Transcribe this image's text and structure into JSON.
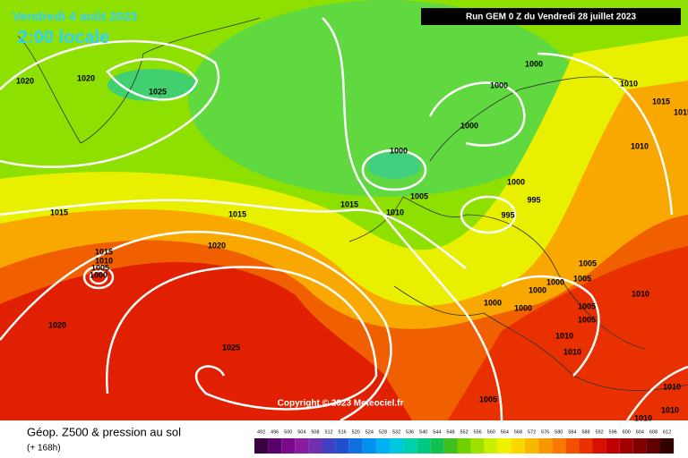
{
  "header": {
    "date": "Vendredi 4 août 2023",
    "time": "2:00 locale",
    "run": "Run GEM 0 Z du Vendredi 28 juillet 2023"
  },
  "isobar_labels": [
    "1020",
    "1020",
    "1025",
    "1000",
    "1000",
    "1000",
    "1010",
    "1015",
    "1015",
    "1010",
    "1000",
    "1005",
    "1000",
    "995",
    "995",
    "1015",
    "1010",
    "1015",
    "1015",
    "1020",
    "1015",
    "1010",
    "1005",
    "1000",
    "1005",
    "1005",
    "1000",
    "1000",
    "1010",
    "1000",
    "1000",
    "1005",
    "1005",
    "1010",
    "1010",
    "1020",
    "1025",
    "1005",
    "1010",
    "1010",
    "1010"
  ],
  "copyright": "Copyright © 2023 Meteociel.fr",
  "legend": {
    "title": "Géop. Z500 & pression au sol",
    "subtitle": "(+ 168h)",
    "ticks": [
      492,
      496,
      500,
      504,
      508,
      512,
      516,
      520,
      524,
      528,
      532,
      536,
      540,
      544,
      548,
      552,
      556,
      560,
      564,
      568,
      572,
      576,
      580,
      584,
      588,
      592,
      596,
      600,
      604,
      608,
      612
    ],
    "colors": [
      "#3a0040",
      "#58006a",
      "#7a0a8a",
      "#8a1aa0",
      "#7030b0",
      "#4040c0",
      "#2050d0",
      "#1070e0",
      "#0090f0",
      "#00b0f0",
      "#00c8e0",
      "#00d0b0",
      "#00c880",
      "#10c050",
      "#40c020",
      "#70d000",
      "#a0e000",
      "#c8f000",
      "#f0f000",
      "#f8d800",
      "#f8b800",
      "#f89800",
      "#f87800",
      "#f05000",
      "#e83000",
      "#d81000",
      "#c00000",
      "#a00000",
      "#800000",
      "#600000",
      "#300000"
    ]
  }
}
